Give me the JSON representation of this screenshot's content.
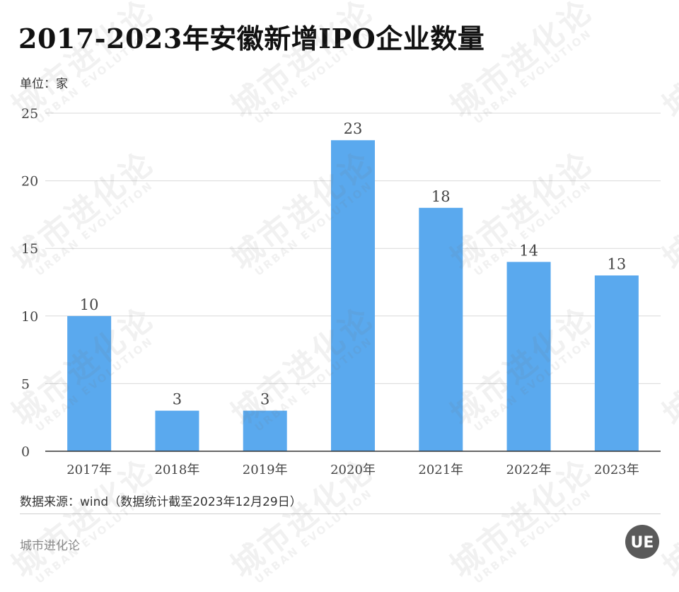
{
  "title": "2017-2023年安徽新增IPO企业数量",
  "unit_label": "单位：家",
  "source": "数据来源：wind（数据统计截至2023年12月29日）",
  "brand": "城市进化论",
  "watermark": {
    "cn": "城市进化论",
    "en": "URBAN EVOLUTION"
  },
  "logo_text": "UE",
  "colors": {
    "bar": "#5aa9ee",
    "grid": "#d9d9d9",
    "axis": "#333333",
    "text": "#444444"
  },
  "chart_data": {
    "type": "bar",
    "categories": [
      "2017年",
      "2018年",
      "2019年",
      "2020年",
      "2021年",
      "2022年",
      "2023年"
    ],
    "values": [
      10,
      3,
      3,
      23,
      18,
      14,
      13
    ],
    "title": "2017-2023年安徽新增IPO企业数量",
    "xlabel": "",
    "ylabel": "单位：家",
    "ylim": [
      0,
      25
    ],
    "yticks": [
      0,
      5,
      10,
      15,
      20,
      25
    ],
    "grid": true,
    "data_labels": true
  }
}
